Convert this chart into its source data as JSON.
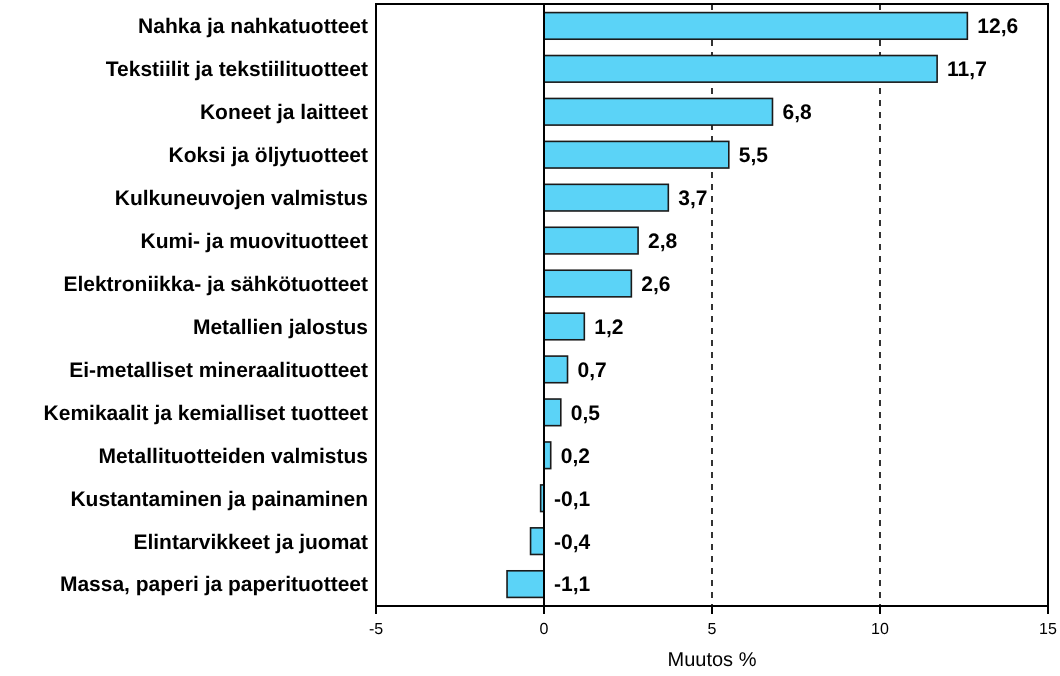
{
  "chart_data": {
    "type": "bar",
    "orientation": "horizontal",
    "xlabel": "Muutos %",
    "categories": [
      "Nahka ja nahkatuotteet",
      "Tekstiilit ja tekstiilituotteet",
      "Koneet ja laitteet",
      "Koksi ja öljytuotteet",
      "Kulkuneuvojen valmistus",
      "Kumi- ja muovituotteet",
      "Elektroniikka- ja sähkötuotteet",
      "Metallien jalostus",
      "Ei-metalliset mineraalituotteet",
      "Kemikaalit ja kemialliset tuotteet",
      "Metallituotteiden valmistus",
      "Kustantaminen ja painaminen",
      "Elintarvikkeet ja juomat",
      "Massa, paperi ja paperituotteet"
    ],
    "values": [
      12.6,
      11.7,
      6.8,
      5.5,
      3.7,
      2.8,
      2.6,
      1.2,
      0.7,
      0.5,
      0.2,
      -0.1,
      -0.4,
      -1.1
    ],
    "value_labels": [
      "12,6",
      "11,7",
      "6,8",
      "5,5",
      "3,7",
      "2,8",
      "2,6",
      "1,2",
      "0,7",
      "0,5",
      "0,2",
      "-0,1",
      "-0,4",
      "-1,1"
    ],
    "color": "#5bd3f7",
    "xlim": [
      -5,
      15
    ],
    "xticks": [
      -5,
      0,
      5,
      10,
      15
    ],
    "grid": "x"
  }
}
